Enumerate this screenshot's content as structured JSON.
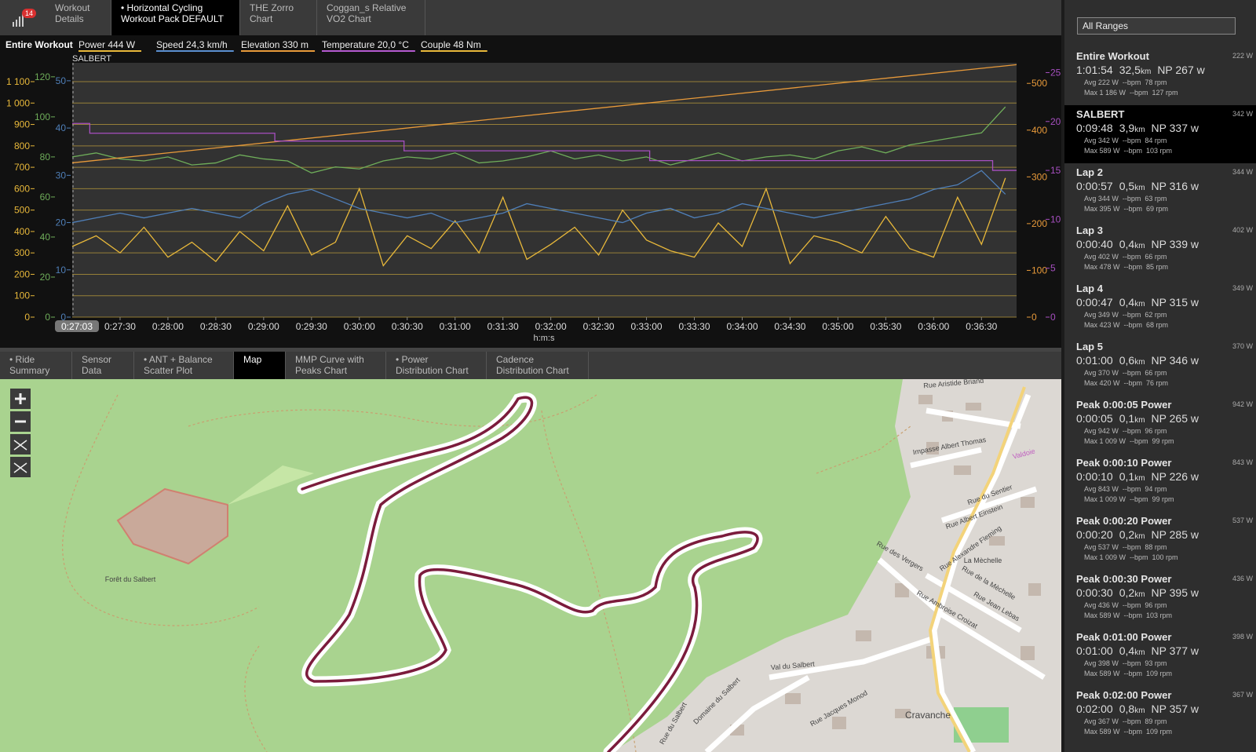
{
  "top_tabs": {
    "badge": "14",
    "tabs": [
      [
        "Workout",
        "Details"
      ],
      [
        "• Horizontal Cycling",
        "Workout Pack DEFAULT"
      ],
      [
        "THE Zorro",
        "Chart"
      ],
      [
        "Coggan_s Relative",
        "VO2 Chart"
      ]
    ]
  },
  "summary": {
    "range": "Entire Workout",
    "metrics": [
      "Power 444 W",
      "Speed 24,3 km/h",
      "Elevation 330 m",
      "Temperature 20,0 °C",
      "Couple 48 Nm"
    ],
    "colors": [
      "#e8b83a",
      "#5b8fd0",
      "#e89a3a",
      "#b45ad0",
      "#e8b83a"
    ],
    "lap": "SALBERT"
  },
  "chart_data": {
    "type": "line",
    "xlabel": "h:m:s",
    "cursor": "0:27:03",
    "grid": true,
    "xlim": [
      1620,
      2212
    ],
    "xticks": [
      {
        "value": 1650,
        "label": "0:27:30"
      },
      {
        "value": 1680,
        "label": "0:28:00"
      },
      {
        "value": 1710,
        "label": "0:28:30"
      },
      {
        "value": 1740,
        "label": "0:29:00"
      },
      {
        "value": 1770,
        "label": "0:29:30"
      },
      {
        "value": 1800,
        "label": "0:30:00"
      },
      {
        "value": 1830,
        "label": "0:30:30"
      },
      {
        "value": 1860,
        "label": "0:31:00"
      },
      {
        "value": 1890,
        "label": "0:31:30"
      },
      {
        "value": 1920,
        "label": "0:32:00"
      },
      {
        "value": 1950,
        "label": "0:32:30"
      },
      {
        "value": 1980,
        "label": "0:33:00"
      },
      {
        "value": 2010,
        "label": "0:33:30"
      },
      {
        "value": 2040,
        "label": "0:34:00"
      },
      {
        "value": 2070,
        "label": "0:34:30"
      },
      {
        "value": 2100,
        "label": "0:35:00"
      },
      {
        "value": 2130,
        "label": "0:35:30"
      },
      {
        "value": 2160,
        "label": "0:36:00"
      },
      {
        "value": 2190,
        "label": "0:36:30"
      }
    ],
    "x": [
      1620,
      1635,
      1650,
      1665,
      1680,
      1695,
      1710,
      1725,
      1740,
      1755,
      1770,
      1785,
      1800,
      1815,
      1830,
      1845,
      1860,
      1875,
      1890,
      1905,
      1920,
      1935,
      1950,
      1965,
      1980,
      1995,
      2010,
      2025,
      2040,
      2055,
      2070,
      2085,
      2100,
      2115,
      2130,
      2145,
      2160,
      2175,
      2190,
      2205
    ],
    "series": [
      {
        "color": "#e8b83a",
        "side": "left",
        "ylim": [
          0,
          1188
        ],
        "yticks": [
          0,
          100,
          200,
          300,
          400,
          500,
          600,
          700,
          800,
          900,
          {
            "value": 1000,
            "label": "1 000"
          },
          {
            "value": 1100,
            "label": "1 100"
          }
        ],
        "values": [
          330,
          380,
          300,
          420,
          280,
          350,
          260,
          400,
          310,
          520,
          290,
          350,
          600,
          240,
          380,
          320,
          450,
          300,
          560,
          270,
          340,
          420,
          290,
          500,
          360,
          310,
          280,
          440,
          330,
          600,
          250,
          380,
          350,
          300,
          470,
          320,
          280,
          560,
          340,
          650
        ]
      },
      {
        "color": "#6fae5a",
        "side": "left",
        "ylim": [
          0,
          127
        ],
        "yticks": [
          0,
          20,
          40,
          60,
          80,
          100,
          120
        ],
        "values": [
          80,
          82,
          79,
          78,
          80,
          76,
          77,
          81,
          79,
          78,
          72,
          75,
          74,
          78,
          80,
          79,
          82,
          77,
          78,
          80,
          83,
          79,
          81,
          78,
          80,
          76,
          79,
          82,
          78,
          80,
          81,
          79,
          83,
          85,
          82,
          86,
          88,
          90,
          92,
          105
        ]
      },
      {
        "color": "#4f7fb8",
        "side": "left",
        "ylim": [
          0,
          53.8
        ],
        "yticks": [
          0,
          10,
          20,
          30,
          40,
          50
        ],
        "values": [
          20,
          21,
          22,
          21,
          22,
          23,
          22,
          21,
          24,
          26,
          27,
          25,
          23,
          22,
          21,
          22,
          20,
          21,
          22,
          24,
          23,
          22,
          21,
          20,
          22,
          23,
          21,
          22,
          24,
          23,
          22,
          21,
          22,
          23,
          24,
          25,
          27,
          28,
          31,
          26
        ]
      },
      {
        "color": "#e89a3a",
        "side": "right",
        "ylim": [
          0,
          544
        ],
        "yticks": [
          0,
          100,
          200,
          300,
          400,
          500
        ],
        "x": [
          1620,
          2212
        ],
        "values": [
          330,
          540
        ]
      },
      {
        "color": "#a64fc0",
        "side": "right",
        "step": true,
        "ylim": [
          0,
          26
        ],
        "yticks": [
          0,
          5,
          10,
          15,
          20,
          25
        ],
        "x": [
          1620,
          1631,
          1747,
          1828,
          1982,
          2197
        ],
        "values": [
          19.8,
          18.8,
          18.0,
          17.0,
          16.0,
          15.0
        ]
      }
    ]
  },
  "bottom_tabs": [
    [
      "• Ride",
      "Summary"
    ],
    [
      "Sensor",
      "Data"
    ],
    [
      "• ANT + Balance",
      "Scatter Plot"
    ],
    [
      "Map"
    ],
    [
      "MMP Curve with",
      "Peaks Chart"
    ],
    [
      "• Power",
      "Distribution Chart"
    ],
    [
      "Cadence",
      "Distribution Chart"
    ]
  ],
  "map": {
    "labels": [
      "Rue Aristide Briand",
      "Impasse Albert Thomas",
      "Rue du Sentier",
      "Rue Albert Einstein",
      "Rue Alexandre Fleming",
      "La Mèchelle",
      "Rue des Vergers",
      "Rue de la Mèchelle",
      "Rue Ambroise Croizat",
      "Rue Jean Lebas",
      "Val du Salbert",
      "Domaine du Salbert",
      "Rue du Salbert",
      "Rue Jacques Monod",
      "Cravanche",
      "Forêt du Salbert",
      "Valdoie"
    ]
  },
  "sidebar": {
    "dropdown": "All Ranges",
    "entries": [
      {
        "title": "Entire Workout",
        "badge": "222 W",
        "time": "1:01:54",
        "distance": "32,5",
        "unit": "km",
        "np": "NP 267 w",
        "avg": "Avg 222 W  --bpm  78 rpm",
        "max": "Max 1 186 W  --bpm  127 rpm"
      },
      {
        "title": "SALBERT",
        "badge": "342 W",
        "time": "0:09:48",
        "distance": "3,9",
        "unit": "km",
        "np": "NP 337 w",
        "avg": "Avg 342 W  --bpm  84 rpm",
        "max": "Max 589 W  --bpm  103 rpm"
      },
      {
        "title": "Lap 2",
        "badge": "344 W",
        "time": "0:00:57",
        "distance": "0,5",
        "unit": "km",
        "np": "NP 316 w",
        "avg": "Avg 344 W  --bpm  63 rpm",
        "max": "Max 395 W  --bpm  69 rpm"
      },
      {
        "title": "Lap 3",
        "badge": "402 W",
        "time": "0:00:40",
        "distance": "0,4",
        "unit": "km",
        "np": "NP 339 w",
        "avg": "Avg 402 W  --bpm  66 rpm",
        "max": "Max 478 W  --bpm  85 rpm"
      },
      {
        "title": "Lap 4",
        "badge": "349 W",
        "time": "0:00:47",
        "distance": "0,4",
        "unit": "km",
        "np": "NP 315 w",
        "avg": "Avg 349 W  --bpm  62 rpm",
        "max": "Max 423 W  --bpm  68 rpm"
      },
      {
        "title": "Lap 5",
        "badge": "370 W",
        "time": "0:01:00",
        "distance": "0,6",
        "unit": "km",
        "np": "NP 346 w",
        "avg": "Avg 370 W  --bpm  66 rpm",
        "max": "Max 420 W  --bpm  76 rpm"
      },
      {
        "title": "Peak 0:00:05 Power",
        "badge": "942 W",
        "time": "0:00:05",
        "distance": "0,1",
        "unit": "km",
        "np": "NP 265 w",
        "avg": "Avg 942 W  --bpm  96 rpm",
        "max": "Max 1 009 W  --bpm  99 rpm"
      },
      {
        "title": "Peak 0:00:10 Power",
        "badge": "843 W",
        "time": "0:00:10",
        "distance": "0,1",
        "unit": "km",
        "np": "NP 226 w",
        "avg": "Avg 843 W  --bpm  94 rpm",
        "max": "Max 1 009 W  --bpm  99 rpm"
      },
      {
        "title": "Peak 0:00:20 Power",
        "badge": "537 W",
        "time": "0:00:20",
        "distance": "0,2",
        "unit": "km",
        "np": "NP 285 w",
        "avg": "Avg 537 W  --bpm  88 rpm",
        "max": "Max 1 009 W  --bpm  100 rpm"
      },
      {
        "title": "Peak 0:00:30 Power",
        "badge": "436 W",
        "time": "0:00:30",
        "distance": "0,2",
        "unit": "km",
        "np": "NP 395 w",
        "avg": "Avg 436 W  --bpm  96 rpm",
        "max": "Max 589 W  --bpm  103 rpm"
      },
      {
        "title": "Peak 0:01:00 Power",
        "badge": "398 W",
        "time": "0:01:00",
        "distance": "0,4",
        "unit": "km",
        "np": "NP 377 w",
        "avg": "Avg 398 W  --bpm  93 rpm",
        "max": "Max 589 W  --bpm  109 rpm"
      },
      {
        "title": "Peak 0:02:00 Power",
        "badge": "367 W",
        "time": "0:02:00",
        "distance": "0,8",
        "unit": "km",
        "np": "NP 357 w",
        "avg": "Avg 367 W  --bpm  89 rpm",
        "max": "Max 589 W  --bpm  109 rpm"
      }
    ]
  }
}
